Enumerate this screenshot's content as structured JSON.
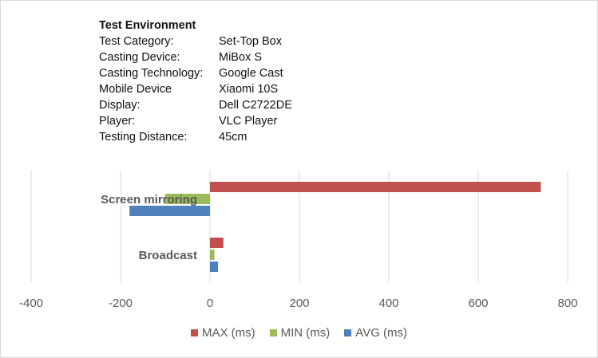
{
  "environment": {
    "title": "Test Environment",
    "rows": [
      {
        "key": "Test Category:",
        "value": "Set-Top Box"
      },
      {
        "key": "Casting Device:",
        "value": "MiBox S"
      },
      {
        "key": "Casting Technology:",
        "value": "Google Cast"
      },
      {
        "key": "Mobile Device",
        "value": "Xiaomi 10S"
      },
      {
        "key": "Display:",
        "value": "Dell C2722DE"
      },
      {
        "key": "Player:",
        "value": "VLC Player"
      },
      {
        "key": "Testing Distance:",
        "value": "45cm"
      }
    ]
  },
  "chart_data": {
    "type": "bar",
    "orientation": "horizontal",
    "categories": [
      "Screen mirroring",
      "Broadcast"
    ],
    "series": [
      {
        "name": "MAX (ms)",
        "color": "#c0504d",
        "values": [
          740,
          30
        ]
      },
      {
        "name": "MIN (ms)",
        "color": "#9bbb59",
        "values": [
          -100,
          10
        ]
      },
      {
        "name": "AVG (ms)",
        "color": "#4f81bd",
        "values": [
          -180,
          18
        ]
      }
    ],
    "xlim": [
      -400,
      800
    ],
    "xticks": [
      -400,
      -200,
      0,
      200,
      400,
      600,
      800
    ],
    "grid": true,
    "legend_position": "bottom",
    "title": "",
    "xlabel": "",
    "ylabel": ""
  }
}
